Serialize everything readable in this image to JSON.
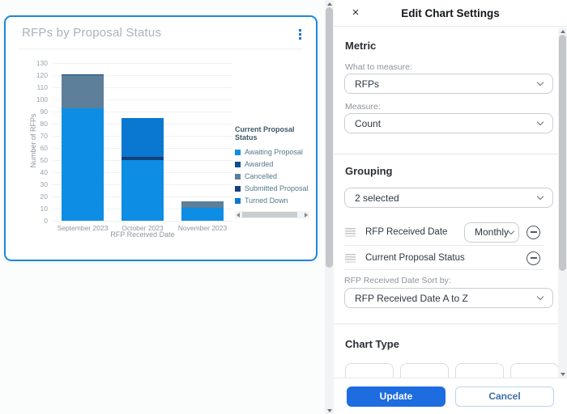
{
  "chart_card": {
    "title": "RFPs by Proposal Status"
  },
  "chart_data": {
    "type": "bar",
    "stacked": true,
    "title": "RFPs by Proposal Status",
    "categories": [
      "September 2023",
      "October 2023",
      "November 2023"
    ],
    "series": [
      {
        "name": "Awaiting Proposal",
        "color": "#0d8de3",
        "values": [
          93,
          50,
          11
        ]
      },
      {
        "name": "Awarded",
        "color": "#0f4d8f",
        "values": [
          0,
          0,
          0
        ]
      },
      {
        "name": "Cancelled",
        "color": "#5d7f9a",
        "values": [
          27,
          0,
          5
        ]
      },
      {
        "name": "Submitted Proposal",
        "color": "#15427c",
        "values": [
          1,
          3,
          0
        ]
      },
      {
        "name": "Turned Down",
        "color": "#0a77d0",
        "values": [
          0,
          32,
          0
        ]
      }
    ],
    "xlabel": "RFP Received Date",
    "ylabel": "Number of RFPs",
    "ylim": [
      0,
      130
    ],
    "ytick_step": 10,
    "grid": true,
    "legend_title": "Current Proposal Status",
    "legend_position": "right"
  },
  "panel": {
    "title": "Edit Chart Settings",
    "close_icon": "×",
    "metric_section": {
      "heading": "Metric",
      "what_label": "What to measure:",
      "what_value": "RFPs",
      "measure_label": "Measure:",
      "measure_value": "Count"
    },
    "grouping_section": {
      "heading": "Grouping",
      "selected_value": "2 selected",
      "rows": [
        {
          "label": "RFP Received Date",
          "interval_value": "Monthly"
        },
        {
          "label": "Current Proposal Status"
        }
      ],
      "sort_label": "RFP Received Date Sort by:",
      "sort_value": "RFP Received Date A to Z"
    },
    "chart_type_section": {
      "heading": "Chart Type"
    },
    "footer": {
      "update_label": "Update",
      "cancel_label": "Cancel"
    }
  }
}
